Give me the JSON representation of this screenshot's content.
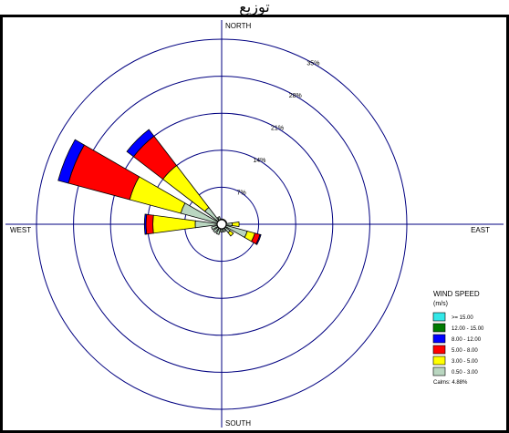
{
  "caption": "توزيع",
  "chart_data": {
    "type": "wind-rose",
    "directions": {
      "north": "NORTH",
      "south": "SOUTH",
      "east": "EAST",
      "west": "WEST"
    },
    "ring_labels": [
      "7%",
      "14%",
      "21%",
      "28%",
      "35%"
    ],
    "ring_values": [
      7,
      14,
      21,
      28,
      35
    ],
    "legend": {
      "title": "WIND SPEED",
      "unit": "(m/s)",
      "bins": [
        {
          "label": ">= 15.00",
          "color": "#33e8e8"
        },
        {
          "label": "12.00 - 15.00",
          "color": "#007a00"
        },
        {
          "label": "8.00 - 12.00",
          "color": "#0000ff"
        },
        {
          "label": "5.00 - 8.00",
          "color": "#ff0000"
        },
        {
          "label": "3.00 - 5.00",
          "color": "#ffff00"
        },
        {
          "label": "0.50 - 3.00",
          "color": "#b9d6c0"
        }
      ],
      "calms": "Calms: 4.88%"
    },
    "petals": [
      {
        "direction_deg": 292.5,
        "segments": [
          {
            "bin": "0.50 - 3.00",
            "percent": 8
          },
          {
            "bin": "3.00 - 5.00",
            "percent": 10
          },
          {
            "bin": "5.00 - 8.00",
            "percent": 12
          },
          {
            "bin": "8.00 - 12.00",
            "percent": 2
          }
        ]
      },
      {
        "direction_deg": 315,
        "segments": [
          {
            "bin": "0.50 - 3.00",
            "percent": 4
          },
          {
            "bin": "3.00 - 5.00",
            "percent": 10
          },
          {
            "bin": "5.00 - 8.00",
            "percent": 7
          },
          {
            "bin": "8.00 - 12.00",
            "percent": 1.6
          }
        ]
      },
      {
        "direction_deg": 270,
        "segments": [
          {
            "bin": "0.50 - 3.00",
            "percent": 5
          },
          {
            "bin": "3.00 - 5.00",
            "percent": 8
          },
          {
            "bin": "5.00 - 8.00",
            "percent": 1.3
          },
          {
            "bin": "8.00 - 12.00",
            "percent": 0.3
          }
        ]
      },
      {
        "direction_deg": 112.5,
        "segments": [
          {
            "bin": "0.50 - 3.00",
            "percent": 5
          },
          {
            "bin": "3.00 - 5.00",
            "percent": 1.5
          },
          {
            "bin": "5.00 - 8.00",
            "percent": 1
          },
          {
            "bin": "8.00 - 12.00",
            "percent": 0.2
          }
        ]
      },
      {
        "direction_deg": 135,
        "segments": [
          {
            "bin": "0.50 - 3.00",
            "percent": 2
          },
          {
            "bin": "3.00 - 5.00",
            "percent": 0.8
          }
        ]
      },
      {
        "direction_deg": 90,
        "segments": [
          {
            "bin": "0.50 - 3.00",
            "percent": 2
          },
          {
            "bin": "3.00 - 5.00",
            "percent": 1.3
          }
        ]
      },
      {
        "direction_deg": 337.5,
        "segments": [
          {
            "bin": "0.50 - 3.00",
            "percent": 1.5
          }
        ]
      },
      {
        "direction_deg": 0,
        "segments": [
          {
            "bin": "0.50 - 3.00",
            "percent": 1
          }
        ]
      },
      {
        "direction_deg": 22.5,
        "segments": [
          {
            "bin": "0.50 - 3.00",
            "percent": 1
          }
        ]
      },
      {
        "direction_deg": 45,
        "segments": [
          {
            "bin": "0.50 - 3.00",
            "percent": 1
          }
        ]
      },
      {
        "direction_deg": 67.5,
        "segments": [
          {
            "bin": "0.50 - 3.00",
            "percent": 1
          }
        ]
      },
      {
        "direction_deg": 157.5,
        "segments": [
          {
            "bin": "0.50 - 3.00",
            "percent": 1.5
          }
        ]
      },
      {
        "direction_deg": 180,
        "segments": [
          {
            "bin": "0.50 - 3.00",
            "percent": 1.5
          }
        ]
      },
      {
        "direction_deg": 202.5,
        "segments": [
          {
            "bin": "0.50 - 3.00",
            "percent": 2
          }
        ]
      },
      {
        "direction_deg": 225,
        "segments": [
          {
            "bin": "0.50 - 3.00",
            "percent": 2
          }
        ]
      },
      {
        "direction_deg": 247.5,
        "segments": [
          {
            "bin": "0.50 - 3.00",
            "percent": 2
          }
        ]
      }
    ]
  }
}
